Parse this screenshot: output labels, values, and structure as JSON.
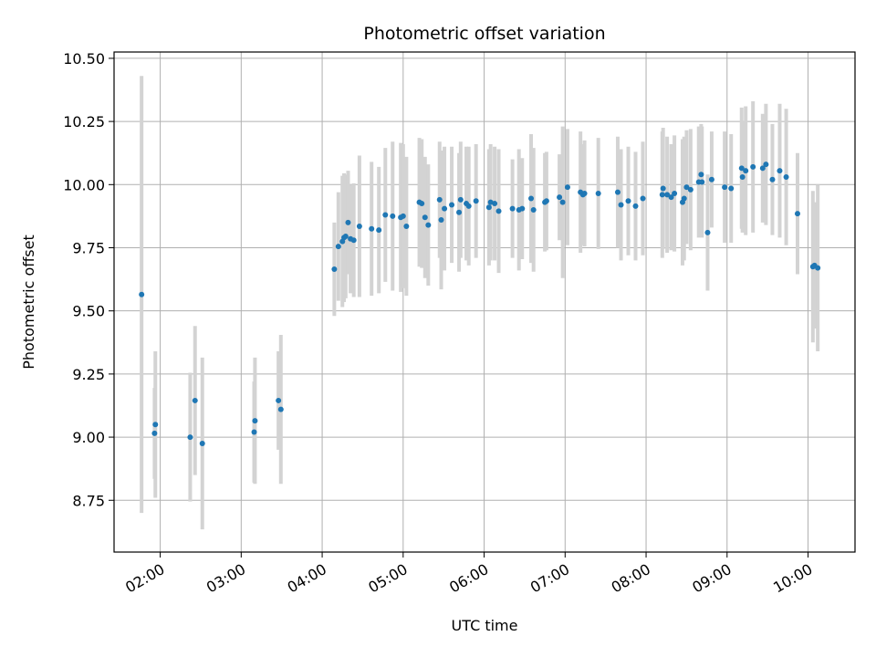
{
  "chart_data": {
    "type": "scatter",
    "title": "Photometric offset variation",
    "xlabel": "UTC time",
    "ylabel": "Photometric offset",
    "x_unit": "hours UTC",
    "xlim": [
      1.43,
      10.58
    ],
    "ylim": [
      8.545,
      10.525
    ],
    "xticks": [
      2,
      3,
      4,
      5,
      6,
      7,
      8,
      9,
      10
    ],
    "xtick_labels": [
      "02:00",
      "03:00",
      "04:00",
      "05:00",
      "06:00",
      "07:00",
      "08:00",
      "09:00",
      "10:00"
    ],
    "yticks": [
      8.75,
      9.0,
      9.25,
      9.5,
      9.75,
      10.0,
      10.25,
      10.5
    ],
    "ytick_labels": [
      "8.75",
      "9.00",
      "9.25",
      "9.50",
      "9.75",
      "10.00",
      "10.25",
      "10.50"
    ],
    "grid": true,
    "colors": {
      "points": "#1f77b4",
      "errorbars": "#d3d3d3",
      "grid": "#b0b0b0"
    },
    "series": [
      {
        "x": [
          1.77,
          1.93,
          1.94,
          2.37,
          2.43,
          2.52,
          3.16,
          3.17,
          3.46,
          3.49,
          4.15,
          4.2,
          4.25,
          4.27,
          4.29,
          4.32,
          4.35,
          4.39,
          4.46,
          4.61,
          4.7,
          4.78,
          4.87,
          4.97,
          5.0,
          5.04,
          5.2,
          5.23,
          5.27,
          5.31,
          5.45,
          5.47,
          5.51,
          5.6,
          5.69,
          5.71,
          5.78,
          5.81,
          5.9,
          6.06,
          6.08,
          6.13,
          6.18,
          6.35,
          6.43,
          6.47,
          6.58,
          6.61,
          6.75,
          6.77,
          6.93,
          6.97,
          7.03,
          7.19,
          7.22,
          7.24,
          7.41,
          7.65,
          7.69,
          7.78,
          7.87,
          7.96,
          8.2,
          8.21,
          8.26,
          8.31,
          8.35,
          8.45,
          8.47,
          8.5,
          8.55,
          8.65,
          8.68,
          8.69,
          8.76,
          8.81,
          8.97,
          9.05,
          9.18,
          9.19,
          9.23,
          9.32,
          9.44,
          9.48,
          9.56,
          9.65,
          9.73,
          9.87,
          10.06,
          10.08,
          10.12
        ],
        "y": [
          9.565,
          9.015,
          9.05,
          9.0,
          9.145,
          8.975,
          9.02,
          9.065,
          9.145,
          9.11,
          9.665,
          9.755,
          9.775,
          9.79,
          9.795,
          9.85,
          9.785,
          9.78,
          9.835,
          9.825,
          9.82,
          9.88,
          9.875,
          9.87,
          9.875,
          9.835,
          9.93,
          9.925,
          9.87,
          9.84,
          9.94,
          9.86,
          9.905,
          9.92,
          9.89,
          9.94,
          9.925,
          9.915,
          9.935,
          9.91,
          9.93,
          9.925,
          9.895,
          9.905,
          9.9,
          9.905,
          9.945,
          9.9,
          9.93,
          9.935,
          9.95,
          9.93,
          9.99,
          9.97,
          9.96,
          9.965,
          9.965,
          9.97,
          9.92,
          9.935,
          9.915,
          9.945,
          9.96,
          9.985,
          9.96,
          9.95,
          9.965,
          9.93,
          9.945,
          9.99,
          9.98,
          10.01,
          10.04,
          10.01,
          9.81,
          10.02,
          9.99,
          9.985,
          10.065,
          10.03,
          10.055,
          10.07,
          10.065,
          10.08,
          10.02,
          10.055,
          10.03,
          9.885,
          9.675,
          9.68,
          9.67
        ],
        "yerr": [
          0.865,
          0.18,
          0.29,
          0.255,
          0.295,
          0.34,
          0.2,
          0.25,
          0.195,
          0.295,
          0.185,
          0.215,
          0.26,
          0.255,
          0.245,
          0.205,
          0.215,
          0.225,
          0.28,
          0.265,
          0.25,
          0.265,
          0.295,
          0.295,
          0.285,
          0.275,
          0.255,
          0.255,
          0.24,
          0.24,
          0.23,
          0.275,
          0.245,
          0.23,
          0.235,
          0.23,
          0.225,
          0.235,
          0.225,
          0.23,
          0.23,
          0.225,
          0.245,
          0.195,
          0.24,
          0.2,
          0.255,
          0.245,
          0.195,
          0.195,
          0.17,
          0.3,
          0.23,
          0.24,
          0.2,
          0.21,
          0.22,
          0.22,
          0.22,
          0.215,
          0.215,
          0.225,
          0.25,
          0.24,
          0.23,
          0.21,
          0.23,
          0.25,
          0.245,
          0.225,
          0.24,
          0.22,
          0.2,
          0.22,
          0.23,
          0.19,
          0.22,
          0.215,
          0.24,
          0.22,
          0.255,
          0.26,
          0.215,
          0.24,
          0.22,
          0.265,
          0.27,
          0.24,
          0.3,
          0.25,
          0.33
        ]
      }
    ]
  }
}
